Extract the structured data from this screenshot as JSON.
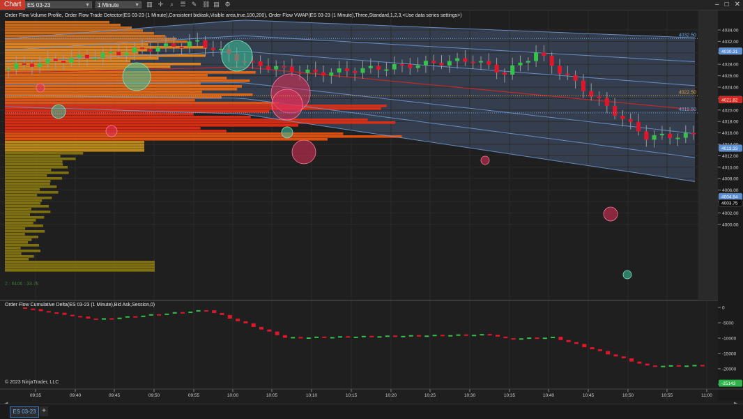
{
  "window": {
    "tab_label": "Chart",
    "instrument": "ES 03-23",
    "period": "1 Minute"
  },
  "indicators": {
    "main": "Order Flow Volume Profile, Order Flow Trade Detector(ES 03-23 (1 Minute),Consistent bid/ask,Visible area,true,100,200), Order Flow VWAP(ES 03-23 (1 Minute),Three,Standard,1,2,3,<Use data series settings>)",
    "lower": "Order Flow Cumulative Delta(ES 03-23 (1 Minute),Bid Ask,Session,0)"
  },
  "profile_readout": "2 : 6106 : 33.7k",
  "copyright": "© 2023 NinjaTrader, LLC",
  "price_axis": {
    "ticks": [
      "4034.00",
      "4032.00",
      "4030.00",
      "4028.00",
      "4026.00",
      "4024.00",
      "4022.00",
      "4020.00",
      "4018.00",
      "4016.00",
      "4014.00",
      "4012.00",
      "4010.00",
      "4008.00",
      "4006.00",
      "4004.00",
      "4002.00",
      "4000.00"
    ],
    "line_labels": [
      {
        "text": "4032.50",
        "color": "#6fa3e0"
      },
      {
        "text": "4022.50",
        "color": "#e0a030"
      },
      {
        "text": "4019.50",
        "color": "#6fa3e0"
      }
    ],
    "markers": [
      {
        "text": "4030.31",
        "bg": "#5b8fd6",
        "fg": "#ffffff"
      },
      {
        "text": "4021.82",
        "bg": "#d9221c",
        "fg": "#ffffff"
      },
      {
        "text": "4013.33",
        "bg": "#5b8fd6",
        "fg": "#ffffff"
      },
      {
        "text": "4004.84",
        "bg": "#5b8fd6",
        "fg": "#ffffff"
      },
      {
        "text": "4003.75",
        "bg": "#0d0d0d",
        "fg": "#ffffff"
      }
    ]
  },
  "delta_axis": {
    "ticks": [
      "0",
      "-5000",
      "-10000",
      "-15000",
      "-20000",
      "-25000"
    ],
    "marker": {
      "text": "-25143",
      "bg": "#2fb34a",
      "fg": "#ffffff"
    }
  },
  "time_axis": [
    "09:35",
    "09:40",
    "09:45",
    "09:50",
    "09:55",
    "10:00",
    "10:05",
    "10:10",
    "10:15",
    "10:20",
    "10:25",
    "10:30",
    "10:35",
    "10:40",
    "10:45",
    "10:50",
    "10:55",
    "11:00"
  ],
  "bottom_tab": {
    "label": "ES 03-23",
    "add": "+"
  },
  "icons": [
    "chart-tab-icon",
    "crosshair-icon",
    "zoom-icon",
    "properties-icon",
    "drawing-tools-icon",
    "link-icon",
    "data-box-icon",
    "strategy-icon",
    "window-minimize-icon",
    "window-maximize-icon",
    "window-close-icon"
  ],
  "colors": {
    "up": "#35c24a",
    "down": "#e0172b",
    "vwap_band": "#6f9bd8",
    "vwap": "#c62828",
    "poc": "#e0a030",
    "buy_bubble": "#3cc6a0",
    "sell_bubble": "#e0305a"
  }
}
